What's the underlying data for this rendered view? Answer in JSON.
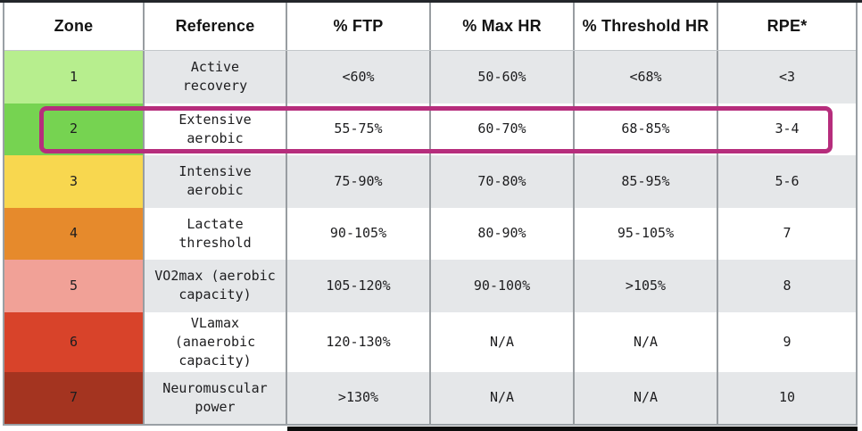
{
  "chart_data": {
    "type": "table",
    "title": "Training intensity zones table",
    "columns": [
      {
        "key": "zone",
        "label": "Zone"
      },
      {
        "key": "reference",
        "label": "Reference"
      },
      {
        "key": "ftp",
        "label": "% FTP"
      },
      {
        "key": "max_hr",
        "label": "% Max HR"
      },
      {
        "key": "threshold_hr",
        "label": "% Threshold HR"
      },
      {
        "key": "rpe",
        "label": "RPE*"
      }
    ],
    "rows": [
      {
        "zone": "1",
        "zone_color": "#b7ee8e",
        "reference": "Active\nrecovery",
        "ftp": "<60%",
        "max_hr": "50-60%",
        "threshold_hr": "<68%",
        "rpe": "<3",
        "highlighted": false
      },
      {
        "zone": "2",
        "zone_color": "#76d351",
        "reference": "Extensive\naerobic",
        "ftp": "55-75%",
        "max_hr": "60-70%",
        "threshold_hr": "68-85%",
        "rpe": "3-4",
        "highlighted": true
      },
      {
        "zone": "3",
        "zone_color": "#f8d74f",
        "reference": "Intensive\naerobic",
        "ftp": "75-90%",
        "max_hr": "70-80%",
        "threshold_hr": "85-95%",
        "rpe": "5-6",
        "highlighted": false
      },
      {
        "zone": "4",
        "zone_color": "#e68a2c",
        "reference": "Lactate\nthreshold",
        "ftp": "90-105%",
        "max_hr": "80-90%",
        "threshold_hr": "95-105%",
        "rpe": "7",
        "highlighted": false
      },
      {
        "zone": "5",
        "zone_color": "#f1a197",
        "reference": "VO2max (aerobic\ncapacity)",
        "ftp": "105-120%",
        "max_hr": "90-100%",
        "threshold_hr": ">105%",
        "rpe": "8",
        "highlighted": false
      },
      {
        "zone": "6",
        "zone_color": "#d8432a",
        "reference": "VLamax (anaerobic\ncapacity)",
        "ftp": "120-130%",
        "max_hr": "N/A",
        "threshold_hr": "N/A",
        "rpe": "9",
        "highlighted": false
      },
      {
        "zone": "7",
        "zone_color": "#a43420",
        "reference": "Neuromuscular\npower",
        "ftp": ">130%",
        "max_hr": "N/A",
        "threshold_hr": "N/A",
        "rpe": "10",
        "highlighted": false
      }
    ],
    "colors": {
      "highlight_border": "#b62d7c",
      "shaded_row": "#e5e7e9",
      "grid_line": "#989da1",
      "top_line": "#23262a",
      "bottom_bar": "#0c0c0c"
    },
    "layout": {
      "shading": "alternating, first data row shaded",
      "highlighted_zone": "2"
    }
  }
}
